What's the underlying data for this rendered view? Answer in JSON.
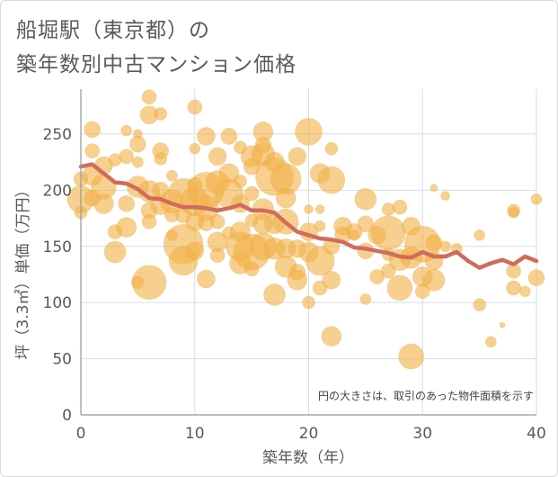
{
  "title_line1": "船堀駅（東京都）の",
  "title_line2": "築年数別中古マンション価格",
  "chart_data": {
    "type": "scatter",
    "xlabel": "築年数（年）",
    "ylabel": "坪（3.3㎡）単価（万円）",
    "xlim": [
      0,
      40
    ],
    "ylim": [
      0,
      290
    ],
    "xticks": [
      0,
      10,
      20,
      30,
      40
    ],
    "yticks": [
      0,
      50,
      100,
      150,
      200,
      250
    ],
    "grid": true,
    "note": "円の大きさは、取引のあった物件面積を示す",
    "colors": {
      "bubble": "#f2b24a",
      "line": "#d06c5c",
      "grid": "#d5dde6",
      "axis": "#8a9aa8"
    },
    "average_line": {
      "x": [
        0,
        1,
        2,
        3,
        4,
        5,
        6,
        7,
        8,
        9,
        10,
        11,
        12,
        13,
        14,
        15,
        16,
        17,
        18,
        19,
        20,
        21,
        22,
        23,
        24,
        25,
        26,
        27,
        28,
        29,
        30,
        31,
        32,
        33,
        34,
        35,
        36,
        37,
        38,
        39,
        40
      ],
      "y": [
        221,
        223,
        215,
        207,
        206,
        201,
        193,
        192,
        188,
        185,
        185,
        184,
        182,
        184,
        187,
        182,
        182,
        180,
        171,
        163,
        160,
        157,
        156,
        154,
        149,
        148,
        146,
        144,
        141,
        140,
        145,
        141,
        141,
        145,
        137,
        131,
        135,
        138,
        134,
        141,
        137
      ]
    },
    "points": [
      {
        "x": 0,
        "y": 192,
        "s": 15
      },
      {
        "x": 0,
        "y": 210,
        "s": 8
      },
      {
        "x": 0,
        "y": 180,
        "s": 7
      },
      {
        "x": 1,
        "y": 254,
        "s": 9
      },
      {
        "x": 1,
        "y": 235,
        "s": 8
      },
      {
        "x": 1,
        "y": 213,
        "s": 11
      },
      {
        "x": 1,
        "y": 193,
        "s": 9
      },
      {
        "x": 2,
        "y": 222,
        "s": 10
      },
      {
        "x": 2,
        "y": 203,
        "s": 14
      },
      {
        "x": 2,
        "y": 188,
        "s": 11
      },
      {
        "x": 3,
        "y": 227,
        "s": 7
      },
      {
        "x": 3,
        "y": 163,
        "s": 8
      },
      {
        "x": 3,
        "y": 145,
        "s": 12
      },
      {
        "x": 4,
        "y": 253,
        "s": 6
      },
      {
        "x": 4,
        "y": 230,
        "s": 8
      },
      {
        "x": 4,
        "y": 188,
        "s": 9
      },
      {
        "x": 4,
        "y": 167,
        "s": 11
      },
      {
        "x": 5,
        "y": 250,
        "s": 5
      },
      {
        "x": 5,
        "y": 241,
        "s": 9
      },
      {
        "x": 5,
        "y": 225,
        "s": 6
      },
      {
        "x": 5,
        "y": 203,
        "s": 12
      },
      {
        "x": 5,
        "y": 118,
        "s": 7
      },
      {
        "x": 6,
        "y": 283,
        "s": 8
      },
      {
        "x": 6,
        "y": 267,
        "s": 10
      },
      {
        "x": 6,
        "y": 199,
        "s": 12
      },
      {
        "x": 6,
        "y": 182,
        "s": 9
      },
      {
        "x": 6,
        "y": 172,
        "s": 8
      },
      {
        "x": 6,
        "y": 118,
        "s": 19
      },
      {
        "x": 7,
        "y": 268,
        "s": 7
      },
      {
        "x": 7,
        "y": 235,
        "s": 9
      },
      {
        "x": 7,
        "y": 228,
        "s": 7
      },
      {
        "x": 7,
        "y": 200,
        "s": 9
      },
      {
        "x": 7,
        "y": 187,
        "s": 11
      },
      {
        "x": 8,
        "y": 213,
        "s": 6
      },
      {
        "x": 8,
        "y": 190,
        "s": 13
      },
      {
        "x": 8,
        "y": 178,
        "s": 8
      },
      {
        "x": 8,
        "y": 160,
        "s": 6
      },
      {
        "x": 9,
        "y": 197,
        "s": 17
      },
      {
        "x": 9,
        "y": 178,
        "s": 9
      },
      {
        "x": 9,
        "y": 152,
        "s": 22
      },
      {
        "x": 9,
        "y": 137,
        "s": 16
      },
      {
        "x": 10,
        "y": 274,
        "s": 8
      },
      {
        "x": 10,
        "y": 237,
        "s": 6
      },
      {
        "x": 10,
        "y": 205,
        "s": 8
      },
      {
        "x": 10,
        "y": 190,
        "s": 16
      },
      {
        "x": 10,
        "y": 172,
        "s": 10
      },
      {
        "x": 10,
        "y": 146,
        "s": 10
      },
      {
        "x": 11,
        "y": 248,
        "s": 10
      },
      {
        "x": 11,
        "y": 200,
        "s": 20
      },
      {
        "x": 11,
        "y": 184,
        "s": 14
      },
      {
        "x": 11,
        "y": 171,
        "s": 9
      },
      {
        "x": 11,
        "y": 121,
        "s": 10
      },
      {
        "x": 12,
        "y": 230,
        "s": 10
      },
      {
        "x": 12,
        "y": 207,
        "s": 13
      },
      {
        "x": 12,
        "y": 172,
        "s": 8
      },
      {
        "x": 12,
        "y": 154,
        "s": 11
      },
      {
        "x": 12,
        "y": 142,
        "s": 8
      },
      {
        "x": 13,
        "y": 248,
        "s": 9
      },
      {
        "x": 13,
        "y": 215,
        "s": 11
      },
      {
        "x": 13,
        "y": 197,
        "s": 16
      },
      {
        "x": 13,
        "y": 162,
        "s": 7
      },
      {
        "x": 14,
        "y": 238,
        "s": 7
      },
      {
        "x": 14,
        "y": 208,
        "s": 7
      },
      {
        "x": 14,
        "y": 188,
        "s": 10
      },
      {
        "x": 14,
        "y": 163,
        "s": 11
      },
      {
        "x": 14,
        "y": 150,
        "s": 16
      },
      {
        "x": 14,
        "y": 135,
        "s": 12
      },
      {
        "x": 15,
        "y": 230,
        "s": 12
      },
      {
        "x": 15,
        "y": 221,
        "s": 9
      },
      {
        "x": 15,
        "y": 197,
        "s": 8
      },
      {
        "x": 15,
        "y": 173,
        "s": 7
      },
      {
        "x": 15,
        "y": 145,
        "s": 20
      },
      {
        "x": 15,
        "y": 130,
        "s": 8
      },
      {
        "x": 16,
        "y": 252,
        "s": 11
      },
      {
        "x": 16,
        "y": 240,
        "s": 9
      },
      {
        "x": 16,
        "y": 232,
        "s": 13
      },
      {
        "x": 16,
        "y": 183,
        "s": 12
      },
      {
        "x": 16,
        "y": 170,
        "s": 11
      },
      {
        "x": 16,
        "y": 150,
        "s": 15
      },
      {
        "x": 17,
        "y": 225,
        "s": 11
      },
      {
        "x": 17,
        "y": 212,
        "s": 21
      },
      {
        "x": 17,
        "y": 170,
        "s": 11
      },
      {
        "x": 17,
        "y": 148,
        "s": 12
      },
      {
        "x": 17,
        "y": 107,
        "s": 12
      },
      {
        "x": 18,
        "y": 210,
        "s": 17
      },
      {
        "x": 18,
        "y": 193,
        "s": 11
      },
      {
        "x": 18,
        "y": 172,
        "s": 14
      },
      {
        "x": 18,
        "y": 148,
        "s": 11
      },
      {
        "x": 18,
        "y": 132,
        "s": 12
      },
      {
        "x": 19,
        "y": 230,
        "s": 10
      },
      {
        "x": 19,
        "y": 148,
        "s": 10
      },
      {
        "x": 19,
        "y": 127,
        "s": 9
      },
      {
        "x": 19,
        "y": 120,
        "s": 11
      },
      {
        "x": 20,
        "y": 252,
        "s": 15
      },
      {
        "x": 20,
        "y": 183,
        "s": 5
      },
      {
        "x": 20,
        "y": 163,
        "s": 10
      },
      {
        "x": 20,
        "y": 145,
        "s": 11
      },
      {
        "x": 20,
        "y": 100,
        "s": 7
      },
      {
        "x": 21,
        "y": 215,
        "s": 11
      },
      {
        "x": 21,
        "y": 183,
        "s": 5
      },
      {
        "x": 21,
        "y": 168,
        "s": 6
      },
      {
        "x": 21,
        "y": 137,
        "s": 16
      },
      {
        "x": 21,
        "y": 113,
        "s": 8
      },
      {
        "x": 22,
        "y": 209,
        "s": 15
      },
      {
        "x": 22,
        "y": 237,
        "s": 7
      },
      {
        "x": 22,
        "y": 150,
        "s": 9
      },
      {
        "x": 22,
        "y": 120,
        "s": 10
      },
      {
        "x": 22,
        "y": 70,
        "s": 11
      },
      {
        "x": 23,
        "y": 168,
        "s": 10
      },
      {
        "x": 23,
        "y": 160,
        "s": 9
      },
      {
        "x": 24,
        "y": 163,
        "s": 9
      },
      {
        "x": 24,
        "y": 160,
        "s": 6
      },
      {
        "x": 25,
        "y": 192,
        "s": 12
      },
      {
        "x": 25,
        "y": 170,
        "s": 9
      },
      {
        "x": 25,
        "y": 146,
        "s": 9
      },
      {
        "x": 25,
        "y": 103,
        "s": 6
      },
      {
        "x": 26,
        "y": 160,
        "s": 10
      },
      {
        "x": 26,
        "y": 123,
        "s": 8
      },
      {
        "x": 27,
        "y": 183,
        "s": 7
      },
      {
        "x": 27,
        "y": 162,
        "s": 19
      },
      {
        "x": 27,
        "y": 143,
        "s": 7
      },
      {
        "x": 27,
        "y": 128,
        "s": 8
      },
      {
        "x": 28,
        "y": 185,
        "s": 8
      },
      {
        "x": 28,
        "y": 138,
        "s": 12
      },
      {
        "x": 28,
        "y": 113,
        "s": 14
      },
      {
        "x": 29,
        "y": 168,
        "s": 10
      },
      {
        "x": 29,
        "y": 140,
        "s": 12
      },
      {
        "x": 29,
        "y": 52,
        "s": 14
      },
      {
        "x": 30,
        "y": 152,
        "s": 20
      },
      {
        "x": 30,
        "y": 123,
        "s": 11
      },
      {
        "x": 30,
        "y": 110,
        "s": 8
      },
      {
        "x": 31,
        "y": 202,
        "s": 4
      },
      {
        "x": 31,
        "y": 153,
        "s": 9
      },
      {
        "x": 31,
        "y": 137,
        "s": 10
      },
      {
        "x": 31,
        "y": 120,
        "s": 12
      },
      {
        "x": 32,
        "y": 195,
        "s": 5
      },
      {
        "x": 32,
        "y": 150,
        "s": 6
      },
      {
        "x": 33,
        "y": 148,
        "s": 6
      },
      {
        "x": 35,
        "y": 160,
        "s": 6
      },
      {
        "x": 35,
        "y": 98,
        "s": 7
      },
      {
        "x": 36,
        "y": 65,
        "s": 6
      },
      {
        "x": 37,
        "y": 80,
        "s": 3
      },
      {
        "x": 38,
        "y": 182,
        "s": 7
      },
      {
        "x": 38,
        "y": 180,
        "s": 6
      },
      {
        "x": 38,
        "y": 128,
        "s": 8
      },
      {
        "x": 38,
        "y": 113,
        "s": 8
      },
      {
        "x": 39,
        "y": 110,
        "s": 6
      },
      {
        "x": 40,
        "y": 192,
        "s": 6
      },
      {
        "x": 40,
        "y": 122,
        "s": 9
      }
    ]
  }
}
